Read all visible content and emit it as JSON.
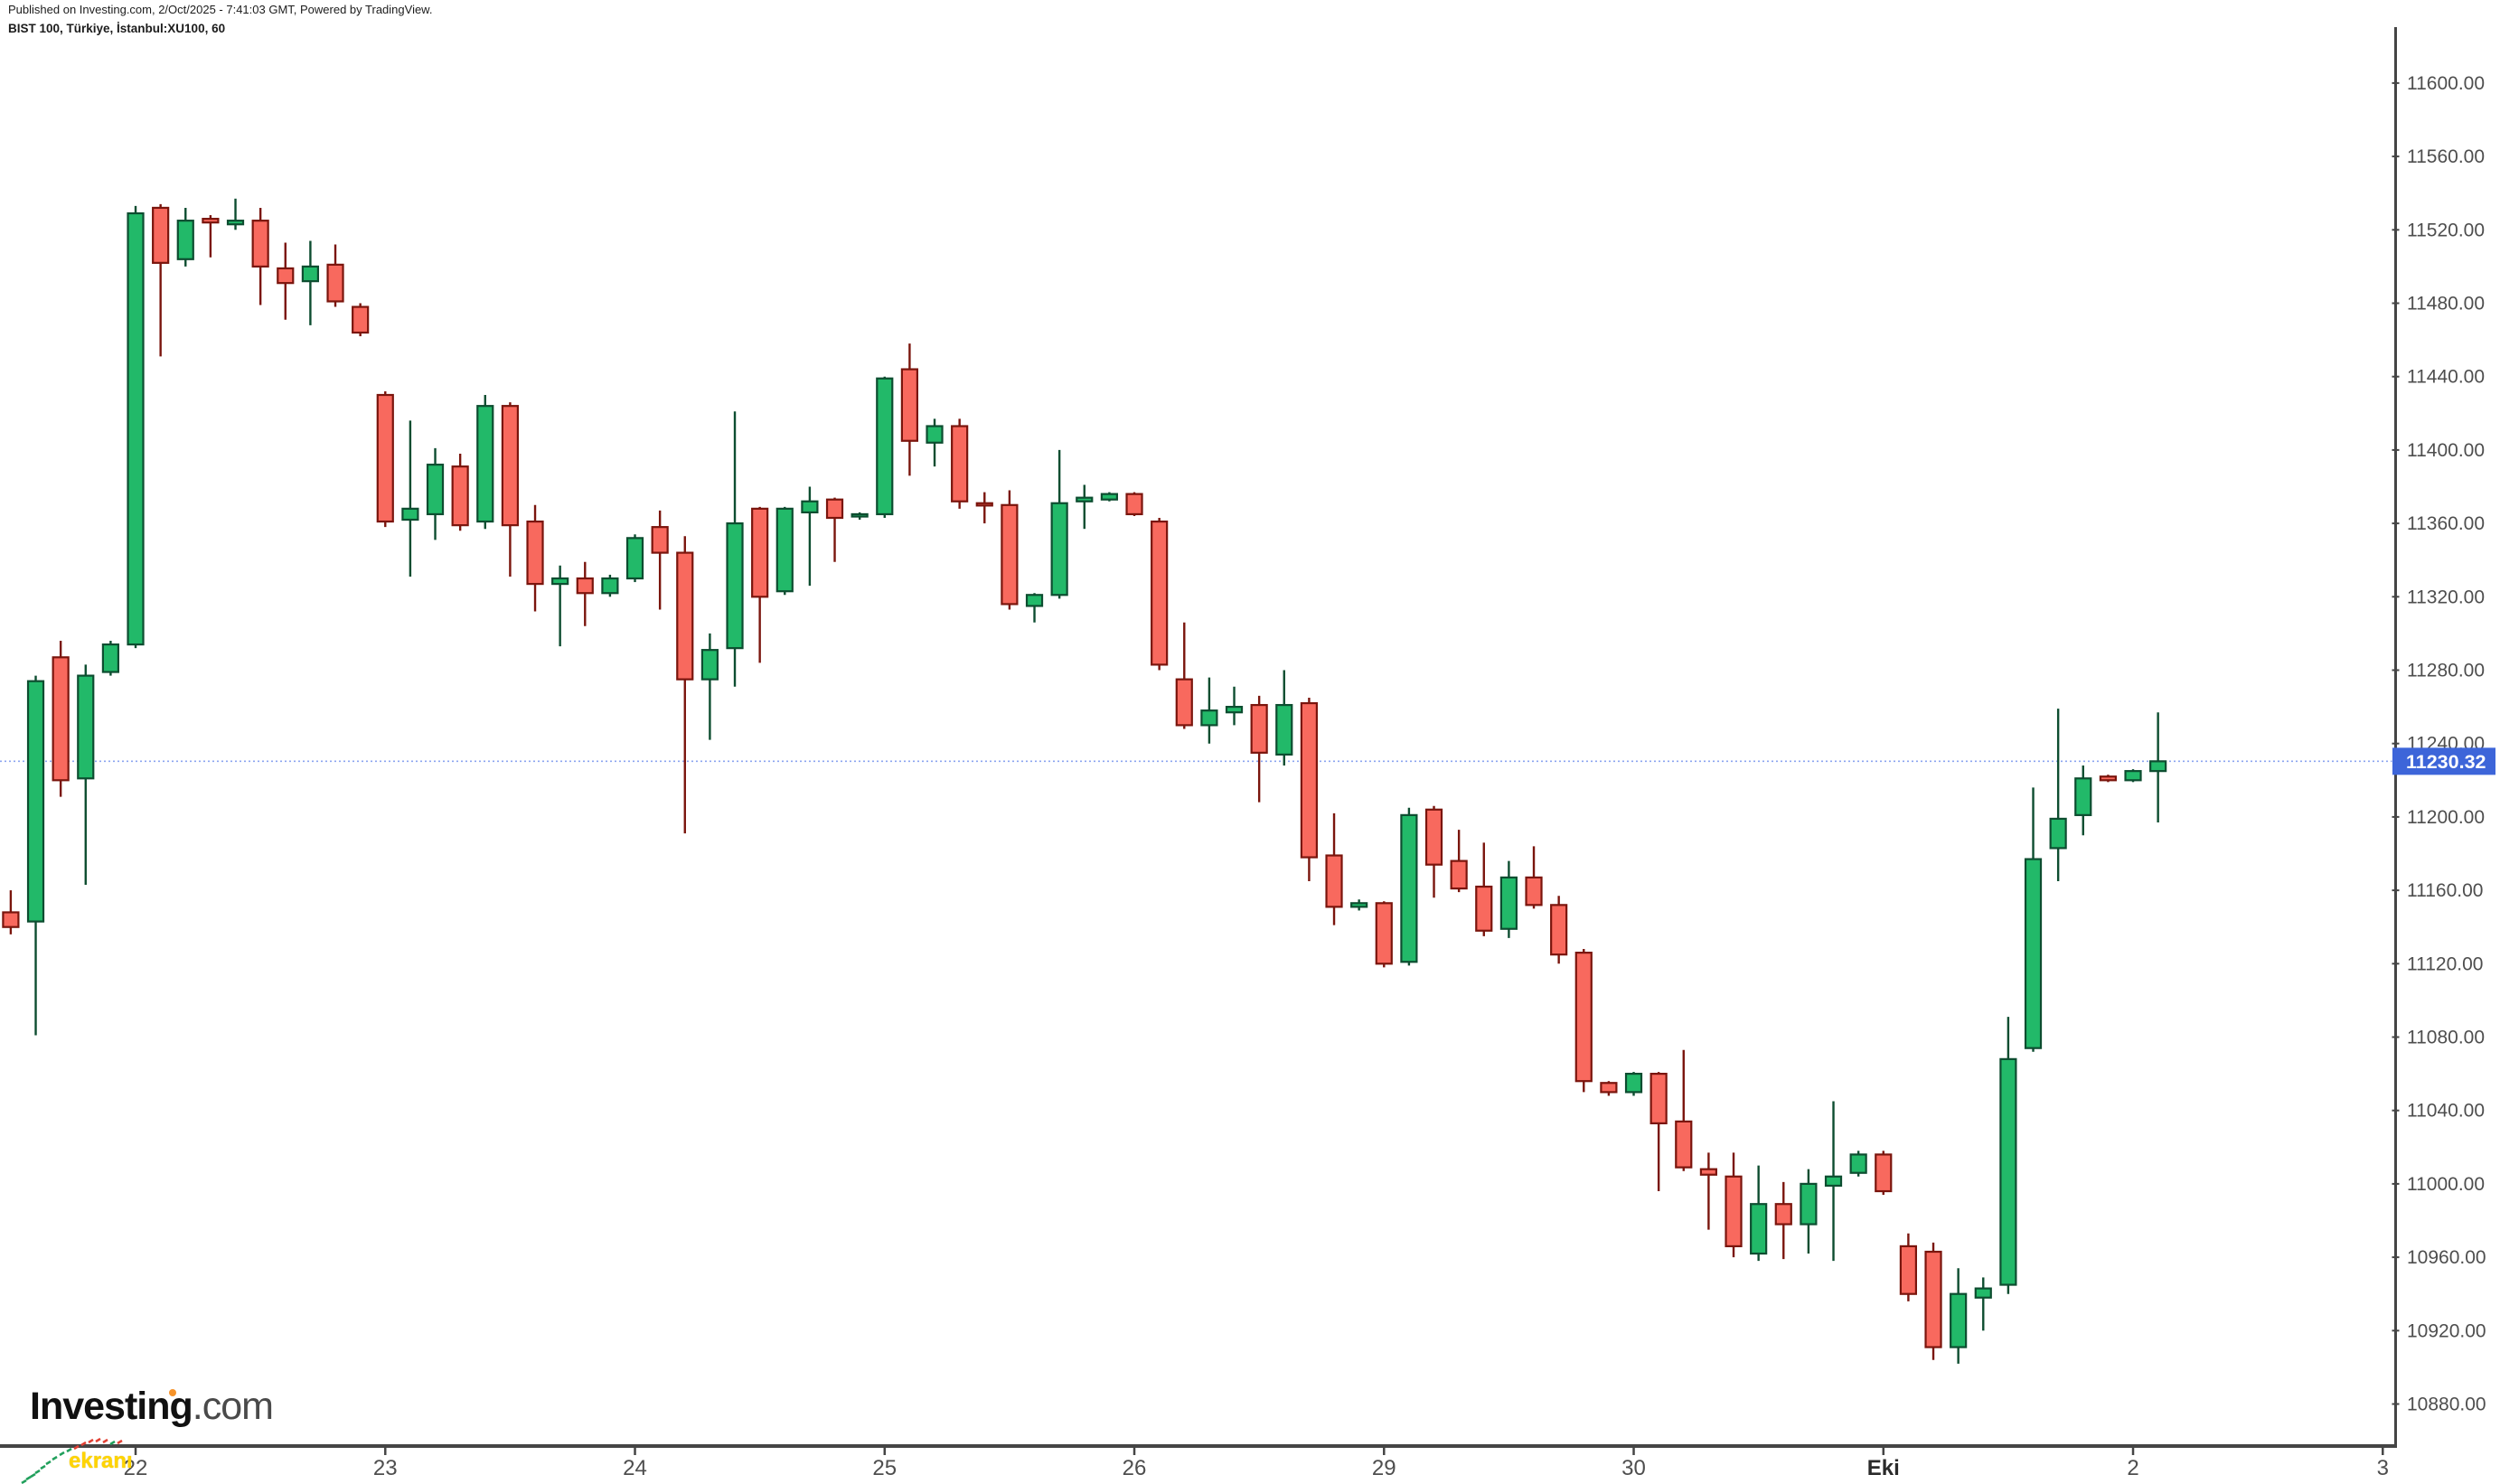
{
  "header": {
    "line1": "Published on Investing.com, 2/Oct/2025 - 7:41:03 GMT, Powered by TradingView.",
    "line2": "BIST 100, Türkiye, İstanbul:XU100, 60"
  },
  "logo": {
    "name": "Investing",
    "tld": ".com"
  },
  "watermark": {
    "text": "ekranı"
  },
  "last_price": {
    "value": "11230.32",
    "numeric": 11230.32
  },
  "colors": {
    "up_fill": "#22b969",
    "up_line": "#0d4d30",
    "down_fill": "#f8695e",
    "down_line": "#7a150d",
    "price_line": "#8ca5f0",
    "price_tag_bg": "#3d65d9",
    "price_tag_text": "#ffffff",
    "axis_line": "#454545",
    "axis_text": "#4e4e4e",
    "axis_text_bold": "#2a2a2a"
  },
  "chart_data": {
    "type": "candlestick",
    "title": "BIST 100 (İstanbul:XU100), 60-minute candles",
    "legend_position": "none",
    "grid": false,
    "y_axis": {
      "tick_min": 10880,
      "tick_max": 11600,
      "tick_step": 40,
      "ylim": [
        10863,
        11625
      ]
    },
    "x_axis": {
      "bars_per_day": 10,
      "labels": [
        {
          "text": "22",
          "bar": 5,
          "bold": false
        },
        {
          "text": "23",
          "bar": 15,
          "bold": false
        },
        {
          "text": "24",
          "bar": 25,
          "bold": false
        },
        {
          "text": "25",
          "bar": 35,
          "bold": false
        },
        {
          "text": "26",
          "bar": 45,
          "bold": false
        },
        {
          "text": "29",
          "bar": 55,
          "bold": false
        },
        {
          "text": "30",
          "bar": 65,
          "bold": false
        },
        {
          "text": "Eki",
          "bar": 75,
          "bold": true
        },
        {
          "text": "2",
          "bar": 85,
          "bold": false
        },
        {
          "text": "3",
          "bar": 95,
          "bold": false
        }
      ]
    },
    "last_price": 11230.32,
    "candles_columns": [
      "open",
      "high",
      "low",
      "close"
    ],
    "candles": [
      [
        11148,
        11160,
        11136,
        11140
      ],
      [
        11143,
        11277,
        11081,
        11274
      ],
      [
        11287,
        11296,
        11211,
        11220
      ],
      [
        11221,
        11283,
        11163,
        11277
      ],
      [
        11279,
        11296,
        11277,
        11294
      ],
      [
        11294,
        11533,
        11292,
        11529
      ],
      [
        11532,
        11534,
        11451,
        11502
      ],
      [
        11504,
        11532,
        11500,
        11525
      ],
      [
        11526,
        11528,
        11505,
        11524
      ],
      [
        11523,
        11537,
        11520,
        11525
      ],
      [
        11525,
        11532,
        11479,
        11500
      ],
      [
        11499,
        11513,
        11471,
        11491
      ],
      [
        11492,
        11514,
        11468,
        11500
      ],
      [
        11501,
        11512,
        11478,
        11481
      ],
      [
        11478,
        11480,
        11462,
        11464
      ],
      [
        11430,
        11432,
        11358,
        11361
      ],
      [
        11362,
        11416,
        11331,
        11368
      ],
      [
        11365,
        11401,
        11351,
        11392
      ],
      [
        11391,
        11398,
        11356,
        11359
      ],
      [
        11361,
        11430,
        11357,
        11424
      ],
      [
        11424,
        11426,
        11331,
        11359
      ],
      [
        11361,
        11370,
        11312,
        11327
      ],
      [
        11327,
        11337,
        11293,
        11330
      ],
      [
        11330,
        11339,
        11304,
        11322
      ],
      [
        11322,
        11332,
        11320,
        11330
      ],
      [
        11330,
        11354,
        11328,
        11352
      ],
      [
        11358,
        11367,
        11313,
        11344
      ],
      [
        11344,
        11353,
        11191,
        11275
      ],
      [
        11275,
        11300,
        11242,
        11291
      ],
      [
        11292,
        11421,
        11271,
        11360
      ],
      [
        11368,
        11369,
        11284,
        11320
      ],
      [
        11323,
        11369,
        11321,
        11368
      ],
      [
        11366,
        11380,
        11326,
        11372
      ],
      [
        11373,
        11374,
        11339,
        11363
      ],
      [
        11364,
        11366,
        11362,
        11365
      ],
      [
        11365,
        11440,
        11363,
        11439
      ],
      [
        11444,
        11458,
        11386,
        11405
      ],
      [
        11404,
        11417,
        11391,
        11413
      ],
      [
        11413,
        11417,
        11368,
        11372
      ],
      [
        11371,
        11377,
        11360,
        11370
      ],
      [
        11370,
        11378,
        11313,
        11316
      ],
      [
        11315,
        11322,
        11306,
        11321
      ],
      [
        11321,
        11400,
        11319,
        11371
      ],
      [
        11372,
        11381,
        11357,
        11374
      ],
      [
        11373,
        11377,
        11372,
        11376
      ],
      [
        11376,
        11377,
        11364,
        11365
      ],
      [
        11361,
        11363,
        11280,
        11283
      ],
      [
        11275,
        11306,
        11248,
        11250
      ],
      [
        11250,
        11276,
        11240,
        11258
      ],
      [
        11257,
        11271,
        11250,
        11260
      ],
      [
        11261,
        11266,
        11208,
        11235
      ],
      [
        11234,
        11280,
        11228,
        11261
      ],
      [
        11262,
        11265,
        11165,
        11178
      ],
      [
        11179,
        11202,
        11141,
        11151
      ],
      [
        11151,
        11155,
        11149,
        11153
      ],
      [
        11153,
        11154,
        11118,
        11120
      ],
      [
        11121,
        11205,
        11119,
        11201
      ],
      [
        11204,
        11206,
        11156,
        11174
      ],
      [
        11176,
        11193,
        11159,
        11161
      ],
      [
        11162,
        11186,
        11135,
        11138
      ],
      [
        11139,
        11176,
        11134,
        11167
      ],
      [
        11167,
        11184,
        11150,
        11152
      ],
      [
        11152,
        11157,
        11120,
        11125
      ],
      [
        11126,
        11128,
        11050,
        11056
      ],
      [
        11055,
        11056,
        11048,
        11050
      ],
      [
        11050,
        11061,
        11048,
        11060
      ],
      [
        11060,
        11061,
        10996,
        11033
      ],
      [
        11034,
        11073,
        11007,
        11009
      ],
      [
        11008,
        11017,
        10975,
        11005
      ],
      [
        11004,
        11017,
        10960,
        10966
      ],
      [
        10962,
        11010,
        10958,
        10989
      ],
      [
        10989,
        11001,
        10959,
        10978
      ],
      [
        10978,
        11008,
        10962,
        11000
      ],
      [
        10999,
        11045,
        10958,
        11004
      ],
      [
        11006,
        11018,
        11004,
        11016
      ],
      [
        11016,
        11018,
        10994,
        10996
      ],
      [
        10966,
        10973,
        10936,
        10940
      ],
      [
        10963,
        10968,
        10904,
        10911
      ],
      [
        10911,
        10954,
        10902,
        10940
      ],
      [
        10938,
        10949,
        10920,
        10943
      ],
      [
        10945,
        11091,
        10940,
        11068
      ],
      [
        11074,
        11216,
        11072,
        11177
      ],
      [
        11183,
        11259,
        11165,
        11199
      ],
      [
        11201,
        11228,
        11190,
        11221
      ],
      [
        11222,
        11223,
        11219,
        11220
      ],
      [
        11220,
        11226,
        11219,
        11225
      ],
      [
        11225,
        11257,
        11197,
        11230.32
      ]
    ]
  }
}
